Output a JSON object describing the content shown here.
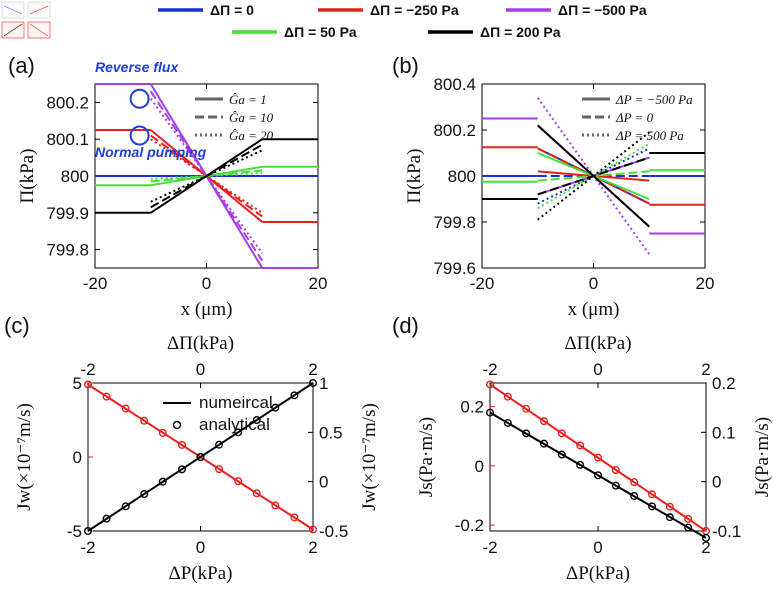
{
  "colors": {
    "blue": "#1a2fdc",
    "red": "#e8201c",
    "purple": "#a63ee8",
    "green": "#44e033",
    "black": "#000000",
    "annotation": "#1f3fd6"
  },
  "top_legend": [
    {
      "label": "ΔΠ = 0",
      "color": "#1a2fdc"
    },
    {
      "label": "ΔΠ = −250 Pa",
      "color": "#e8201c"
    },
    {
      "label": "ΔΠ = −500 Pa",
      "color": "#a63ee8"
    },
    {
      "label": "ΔΠ = 50 Pa",
      "color": "#44e033"
    },
    {
      "label": "ΔΠ = 200 Pa",
      "color": "#000000"
    }
  ],
  "chart_data": [
    {
      "panel": "(a)",
      "type": "line",
      "xlabel": "x (μm)",
      "ylabel": "Π(kPa)",
      "xlim": [
        -20,
        20
      ],
      "ylim": [
        799.75,
        800.25
      ],
      "xticks": [
        "-20",
        "0",
        "20"
      ],
      "yticks": [
        "799.8",
        "799.9",
        "800",
        "800.1",
        "800.2"
      ],
      "inner_legend": [
        {
          "label": "Ĝa = 1",
          "style": "solid"
        },
        {
          "label": "Ĝa = 10",
          "style": "dashed"
        },
        {
          "label": "Ĝa = 20",
          "style": "dotted"
        }
      ],
      "annotations": [
        "Reverse flux",
        "Normal pumping"
      ],
      "series": [
        {
          "color": "blue",
          "left": 800.0,
          "right": 800.0,
          "slopes": [
            0,
            0,
            0
          ]
        },
        {
          "color": "red",
          "left": 800.125,
          "right": 799.875,
          "slopes": [
            0.0125,
            0.011,
            0.01
          ]
        },
        {
          "color": "purple",
          "left": 800.25,
          "right": 799.75,
          "slopes": [
            0.025,
            0.023,
            0.021
          ]
        },
        {
          "color": "green",
          "left": 799.975,
          "right": 800.025,
          "slopes": [
            -0.0025,
            -0.0015,
            -0.0008
          ]
        },
        {
          "color": "black",
          "left": 799.9,
          "right": 800.1,
          "slopes": [
            -0.01,
            -0.0085,
            -0.007
          ]
        }
      ]
    },
    {
      "panel": "(b)",
      "type": "line",
      "xlabel": "x (μm)",
      "ylabel": "Π(kPa)",
      "xlim": [
        -20,
        20
      ],
      "ylim": [
        799.6,
        800.4
      ],
      "xticks": [
        "-20",
        "0",
        "20"
      ],
      "yticks": [
        "799.6",
        "799.8",
        "800",
        "800.2",
        "800.4"
      ],
      "inner_legend": [
        {
          "label": "ΔP = −500 Pa",
          "style": "solid"
        },
        {
          "label": "ΔP = 0",
          "style": "dashed"
        },
        {
          "label": "ΔP = 500 Pa",
          "style": "dotted"
        }
      ],
      "series": [
        {
          "color": "blue",
          "left": 800.0,
          "right": 800.0,
          "slopes": [
            0.012,
            0.0,
            -0.012
          ]
        },
        {
          "color": "red",
          "left": 800.125,
          "right": 799.875,
          "slopes": [
            0.002,
            0.012,
            0.022
          ]
        },
        {
          "color": "purple",
          "left": 800.25,
          "right": 799.75,
          "slopes": [
            -0.008,
            0.022,
            0.034
          ]
        },
        {
          "color": "green",
          "left": 799.975,
          "right": 800.025,
          "slopes": [
            0.01,
            -0.002,
            -0.014
          ]
        },
        {
          "color": "black",
          "left": 799.9,
          "right": 800.1,
          "slopes": [
            0.022,
            -0.008,
            -0.019
          ]
        }
      ]
    },
    {
      "panel": "(c)",
      "type": "line",
      "xlabel": "ΔP(kPa)",
      "top_xlabel": "ΔΠ(kPa)",
      "ylabel_left": "Jw(×10⁻⁷m/s)",
      "ylabel_right": "Jw(×10⁻⁷m/s)",
      "xlim": [
        -2,
        2
      ],
      "ylim_left": [
        -5,
        5
      ],
      "ylim_right": [
        -0.5,
        1
      ],
      "xticks": [
        "-2",
        "0",
        "2"
      ],
      "yticks_left": [
        "-5",
        "0",
        "5"
      ],
      "yticks_right": [
        "-0.5",
        "0",
        "0.5",
        "1"
      ],
      "legend": [
        "numeircal",
        "analytical"
      ],
      "series": [
        {
          "name": "red (left axis, vs ΔP)",
          "color": "red",
          "x": [
            -2,
            -1.67,
            -1.33,
            -1.0,
            -0.67,
            -0.33,
            0,
            0.33,
            0.67,
            1.0,
            1.33,
            1.67,
            2
          ],
          "y": [
            4.9,
            4.08,
            3.27,
            2.45,
            1.63,
            0.82,
            0,
            -0.82,
            -1.63,
            -2.45,
            -3.27,
            -4.08,
            -4.9
          ]
        },
        {
          "name": "black (right axis, vs ΔΠ)",
          "color": "black",
          "x": [
            -2,
            -1.67,
            -1.33,
            -1.0,
            -0.67,
            -0.33,
            0,
            0.33,
            0.67,
            1.0,
            1.33,
            1.67,
            2
          ],
          "y": [
            -0.5,
            -0.375,
            -0.25,
            -0.125,
            0.0,
            0.125,
            0.25,
            0.375,
            0.5,
            0.625,
            0.75,
            0.875,
            1.0
          ]
        }
      ]
    },
    {
      "panel": "(d)",
      "type": "line",
      "xlabel": "ΔP(kPa)",
      "top_xlabel": "ΔΠ(kPa)",
      "ylabel_left": "Js(Pa·m/s)",
      "ylabel_right": "Js(Pa·m/s)",
      "xlim": [
        -2,
        2
      ],
      "ylim_left": [
        -0.22,
        0.28
      ],
      "ylim_right": [
        -0.1,
        0.2
      ],
      "xticks": [
        "-2",
        "0",
        "2"
      ],
      "yticks_left": [
        "-0.2",
        "0",
        "0.2"
      ],
      "yticks_right": [
        "-0.1",
        "0",
        "0.1",
        "0.2"
      ],
      "series": [
        {
          "name": "red (left axis, vs ΔP)",
          "color": "red",
          "x": [
            -2,
            -1.67,
            -1.33,
            -1.0,
            -0.67,
            -0.33,
            0,
            0.33,
            0.67,
            1.0,
            1.33,
            1.67,
            2
          ],
          "y": [
            0.275,
            0.234,
            0.193,
            0.151,
            0.11,
            0.069,
            0.028,
            -0.014,
            -0.055,
            -0.096,
            -0.138,
            -0.179,
            -0.22
          ]
        },
        {
          "name": "black (right axis, vs ΔΠ)",
          "color": "black",
          "x": [
            -2,
            -1.67,
            -1.33,
            -1.0,
            -0.67,
            -0.33,
            0,
            0.33,
            0.67,
            1.0,
            1.33,
            1.67,
            2
          ],
          "y": [
            0.14,
            0.119,
            0.098,
            0.077,
            0.055,
            0.034,
            0.013,
            -0.008,
            -0.029,
            -0.05,
            -0.072,
            -0.093,
            -0.114
          ]
        }
      ]
    }
  ]
}
